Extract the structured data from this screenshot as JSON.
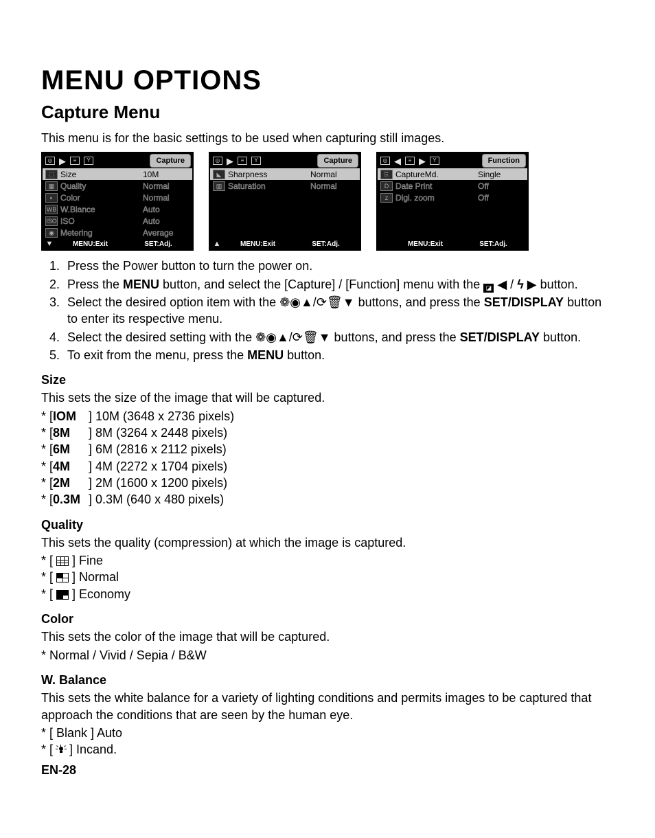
{
  "title": "MENU OPTIONS",
  "subtitle": "Capture Menu",
  "intro": "This menu is for the basic settings to be used when capturing still images.",
  "menus": [
    {
      "tabLabel": "Capture",
      "tabIconsHtml": "▶",
      "rows": [
        {
          "icon": "⬚",
          "label": "Size",
          "value": "10M",
          "hl": true
        },
        {
          "icon": "▦",
          "label": "Quality",
          "value": "Normal"
        },
        {
          "icon": "◐",
          "label": "Color",
          "value": "Normal"
        },
        {
          "icon": "WB",
          "label": "W.Blance",
          "value": "Auto"
        },
        {
          "icon": "ISO",
          "label": "ISO",
          "value": "Auto"
        },
        {
          "icon": "◉",
          "label": "Metering",
          "value": "Average"
        }
      ],
      "footerArrow": "▼",
      "footerLeft": "MENU:Exit",
      "footerRight": "SET:Adj."
    },
    {
      "tabLabel": "Capture",
      "tabIconsHtml": "▶",
      "rows": [
        {
          "icon": "◣",
          "label": "Sharpness",
          "value": "Normal",
          "hl": true
        },
        {
          "icon": "▥",
          "label": "Saturation",
          "value": "Normal"
        },
        {
          "icon": "",
          "label": "",
          "value": ""
        },
        {
          "icon": "",
          "label": "",
          "value": ""
        },
        {
          "icon": "",
          "label": "",
          "value": ""
        },
        {
          "icon": "",
          "label": "",
          "value": ""
        }
      ],
      "footerArrow": "▲",
      "footerLeft": "MENU:Exit",
      "footerRight": "SET:Adj."
    },
    {
      "tabLabel": "Function",
      "tabIconsHtml": "◀ ▶",
      "rows": [
        {
          "icon": "⎘",
          "label": "CaptureMd.",
          "value": "Single",
          "hl": true
        },
        {
          "icon": "D",
          "label": "Date Print",
          "value": "Off"
        },
        {
          "icon": "z",
          "label": "Digi. zoom",
          "value": "Off"
        },
        {
          "icon": "",
          "label": "",
          "value": ""
        },
        {
          "icon": "",
          "label": "",
          "value": ""
        },
        {
          "icon": "",
          "label": "",
          "value": ""
        }
      ],
      "footerArrow": "",
      "footerLeft": "MENU:Exit",
      "footerRight": "SET:Adj."
    }
  ],
  "steps": [
    "Press the Power button to turn the power on.",
    "Press the <b>MENU</b> button, and select the [Capture] / [Function] menu with the <span class=\"btn-icon\">◪</span> ◀ / <b class=\"sym\">ϟ</b> ▶ button.",
    "Select the desired option item with the <span class=\"sym\">❁◉</span>▲/<span class=\"sym\">⟳🗑</span>▼ buttons, and press the <b>SET/DISPLAY</b> button to enter its respective menu.",
    "Select the desired setting with the <span class=\"sym\">❁◉</span>▲/<span class=\"sym\">⟳🗑</span>▼ buttons, and press the <b>SET/DISPLAY</b> button.",
    "To exit from the menu, press the <b>MENU</b> button."
  ],
  "size": {
    "heading": "Size",
    "desc": "This sets the size of the image that will be captured.",
    "opts": [
      {
        "tag": "IOM",
        "text": "10M (3648 x 2736 pixels)"
      },
      {
        "tag": "8M",
        "text": "8M (3264 x 2448 pixels)"
      },
      {
        "tag": "6M",
        "text": "6M (2816 x 2112 pixels)"
      },
      {
        "tag": "4M",
        "text": "4M (2272 x 1704 pixels)"
      },
      {
        "tag": "2M",
        "text": "2M (1600 x 1200 pixels)"
      },
      {
        "tag": "0.3M",
        "text": "0.3M (640 x 480 pixels)"
      }
    ]
  },
  "quality": {
    "heading": "Quality",
    "desc": "This sets the quality (compression) at which the image is captured.",
    "opts": [
      {
        "iconClass": "grid-fine",
        "text": "Fine"
      },
      {
        "iconClass": "grid-normal",
        "text": "Normal"
      },
      {
        "iconClass": "grid-econ",
        "text": "Economy"
      }
    ]
  },
  "color": {
    "heading": "Color",
    "desc": "This sets the color of the image that will be captured.",
    "opts": "* Normal / Vivid / Sepia / B&W"
  },
  "wb": {
    "heading": "W. Balance",
    "desc": "This sets the white balance for a variety of lighting conditions and permits images to be captured that approach the conditions that are seen by the human eye.",
    "opts": [
      {
        "iconHtml": "Blank",
        "text": "Auto"
      },
      {
        "iconHtml": "<span class=\"bulb-icon\"><span class=\"bulb-rays\"><span></span><span></span><span></span><span></span><span></span></span></span>",
        "text": "Incand."
      }
    ]
  },
  "pageNum": "EN-28"
}
